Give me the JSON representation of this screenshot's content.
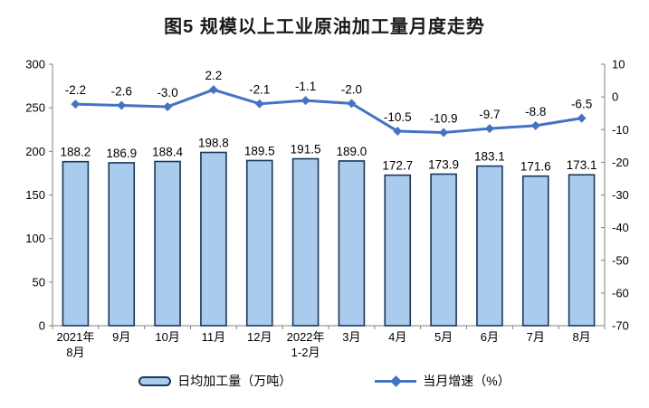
{
  "chart_data": {
    "type": "bar+line",
    "title": "图5 规模以上工业原油加工量月度走势",
    "categories": [
      "2021年\n8月",
      "9月",
      "10月",
      "11月",
      "12月",
      "2022年\n1-2月",
      "3月",
      "4月",
      "5月",
      "6月",
      "7月",
      "8月"
    ],
    "series": [
      {
        "name": "日均加工量（万吨）",
        "type": "bar",
        "axis": "left",
        "values": [
          188.2,
          186.9,
          188.4,
          198.8,
          189.5,
          191.5,
          189.0,
          172.7,
          173.9,
          183.1,
          171.6,
          173.1
        ],
        "labels": [
          "188.2",
          "186.9",
          "188.4",
          "198.8",
          "189.5",
          "191.5",
          "189.0",
          "172.7",
          "173.9",
          "183.1",
          "171.6",
          "173.1"
        ]
      },
      {
        "name": "当月增速（%）",
        "type": "line",
        "axis": "right",
        "values": [
          -2.2,
          -2.6,
          -3.0,
          2.2,
          -2.1,
          -1.1,
          -2.0,
          -10.5,
          -10.9,
          -9.7,
          -8.8,
          -6.5
        ],
        "labels": [
          "-2.2",
          "-2.6",
          "-3.0",
          "2.2",
          "-2.1",
          "-1.1",
          "-2.0",
          "-10.5",
          "-10.9",
          "-9.7",
          "-8.8",
          "-6.5"
        ]
      }
    ],
    "left_axis": {
      "min": 0,
      "max": 300,
      "step": 50,
      "tick_labels": [
        "0",
        "50",
        "100",
        "150",
        "200",
        "250",
        "300"
      ]
    },
    "right_axis": {
      "min": -70,
      "max": 10,
      "step": 10,
      "tick_labels": [
        "-70",
        "-60",
        "-50",
        "-40",
        "-30",
        "-20",
        "-10",
        "0",
        "10"
      ]
    },
    "grid": "off",
    "legend_position": "bottom",
    "colors": {
      "bar_fill": "#A9CCEE",
      "bar_border": "#17375E",
      "line": "#4472C4",
      "axis": "#808080",
      "text": "#000000"
    }
  }
}
